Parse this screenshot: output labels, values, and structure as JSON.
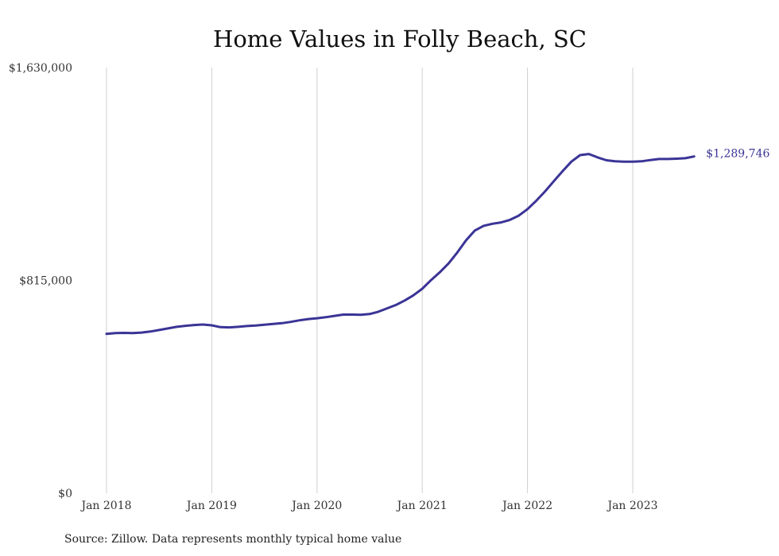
{
  "title": "Home Values in Folly Beach, SC",
  "source": "Source: Zillow. Data represents monthly typical home value",
  "colors": {
    "series": "#3a3496",
    "grid": "#cfcfcf",
    "text": "#333333"
  },
  "chart_data": {
    "type": "line",
    "title": "Home Values in Folly Beach, SC",
    "xlabel": "",
    "ylabel": "",
    "x_tick_labels": [
      "Jan 2018",
      "Jan 2019",
      "Jan 2020",
      "Jan 2021",
      "Jan 2022",
      "Jan 2023"
    ],
    "y_tick_labels": [
      "$0",
      "$815,000",
      "$1,630,000"
    ],
    "ylim": [
      0,
      1630000
    ],
    "xlim": [
      "2018-01",
      "2023-08"
    ],
    "grid": "vertical lines at January of each year",
    "end_label": "$1,289,746",
    "series": [
      {
        "x": [
          "2018-01",
          "2018-02",
          "2018-03",
          "2018-04",
          "2018-05",
          "2018-06",
          "2018-07",
          "2018-08",
          "2018-09",
          "2018-10",
          "2018-11",
          "2018-12",
          "2019-01",
          "2019-02",
          "2019-03",
          "2019-04",
          "2019-05",
          "2019-06",
          "2019-07",
          "2019-08",
          "2019-09",
          "2019-10",
          "2019-11",
          "2019-12",
          "2020-01",
          "2020-02",
          "2020-03",
          "2020-04",
          "2020-05",
          "2020-06",
          "2020-07",
          "2020-08",
          "2020-09",
          "2020-10",
          "2020-11",
          "2020-12",
          "2021-01",
          "2021-02",
          "2021-03",
          "2021-04",
          "2021-05",
          "2021-06",
          "2021-07",
          "2021-08",
          "2021-09",
          "2021-10",
          "2021-11",
          "2021-12",
          "2022-01",
          "2022-02",
          "2022-03",
          "2022-04",
          "2022-05",
          "2022-06",
          "2022-07",
          "2022-08",
          "2022-09",
          "2022-10",
          "2022-11",
          "2022-12",
          "2023-01",
          "2023-02",
          "2023-03",
          "2023-04",
          "2023-05",
          "2023-06",
          "2023-07",
          "2023-08"
        ],
        "values": [
          610000,
          613000,
          614000,
          613000,
          615000,
          619000,
          625000,
          631000,
          637000,
          641000,
          644000,
          646000,
          643000,
          636000,
          635000,
          637000,
          640000,
          642000,
          645000,
          648000,
          651000,
          656000,
          662000,
          667000,
          670000,
          674000,
          679000,
          684000,
          684000,
          683000,
          686000,
          695000,
          708000,
          721000,
          738000,
          758000,
          783000,
          816000,
          846000,
          880000,
          922000,
          969000,
          1006000,
          1024000,
          1032000,
          1037000,
          1047000,
          1063000,
          1088000,
          1120000,
          1156000,
          1195000,
          1233000,
          1270000,
          1295000,
          1299000,
          1286000,
          1275000,
          1271000,
          1270000,
          1270000,
          1271000,
          1276000,
          1280000,
          1280000,
          1281000,
          1283000,
          1289746
        ]
      }
    ]
  }
}
